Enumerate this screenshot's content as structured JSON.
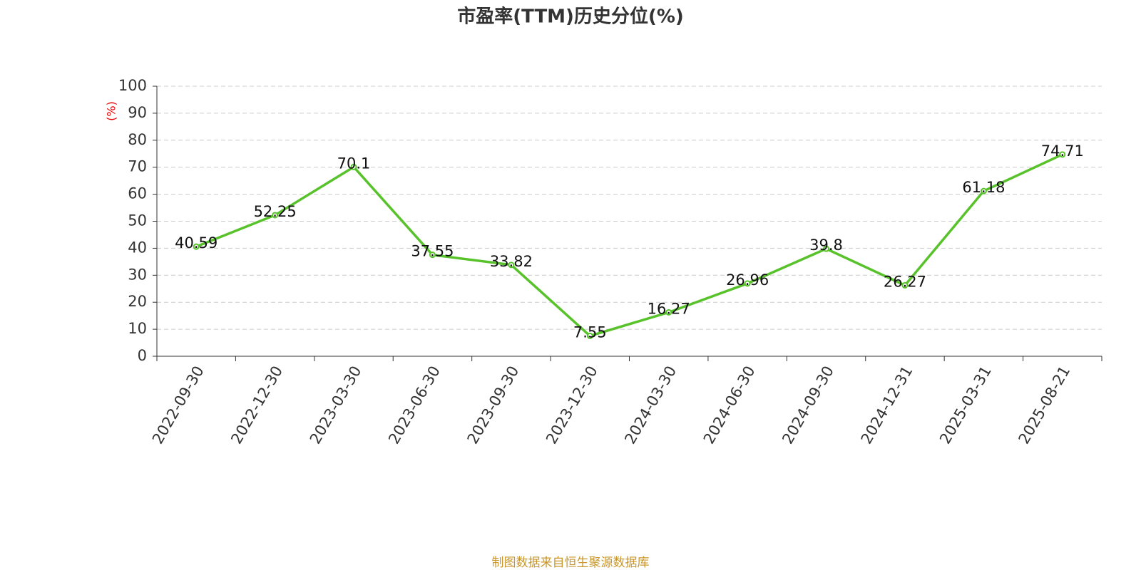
{
  "chart_data": {
    "type": "line",
    "title": "市盈率(TTM)历史分位(%)",
    "y_label": "(%)",
    "categories": [
      "2022-09-30",
      "2022-12-30",
      "2023-03-30",
      "2023-06-30",
      "2023-09-30",
      "2023-12-30",
      "2024-03-30",
      "2024-06-30",
      "2024-09-30",
      "2024-12-31",
      "2025-03-31",
      "2025-08-21"
    ],
    "values": [
      40.59,
      52.25,
      70.1,
      37.55,
      33.82,
      7.55,
      16.27,
      26.96,
      39.8,
      26.27,
      61.18,
      74.71
    ],
    "color": "#58c22b",
    "ylim": [
      0,
      100
    ],
    "yticks": [
      0,
      10,
      20,
      30,
      40,
      50,
      60,
      70,
      80,
      90,
      100
    ],
    "grid": true,
    "source": "制图数据来自恒生聚源数据库"
  }
}
